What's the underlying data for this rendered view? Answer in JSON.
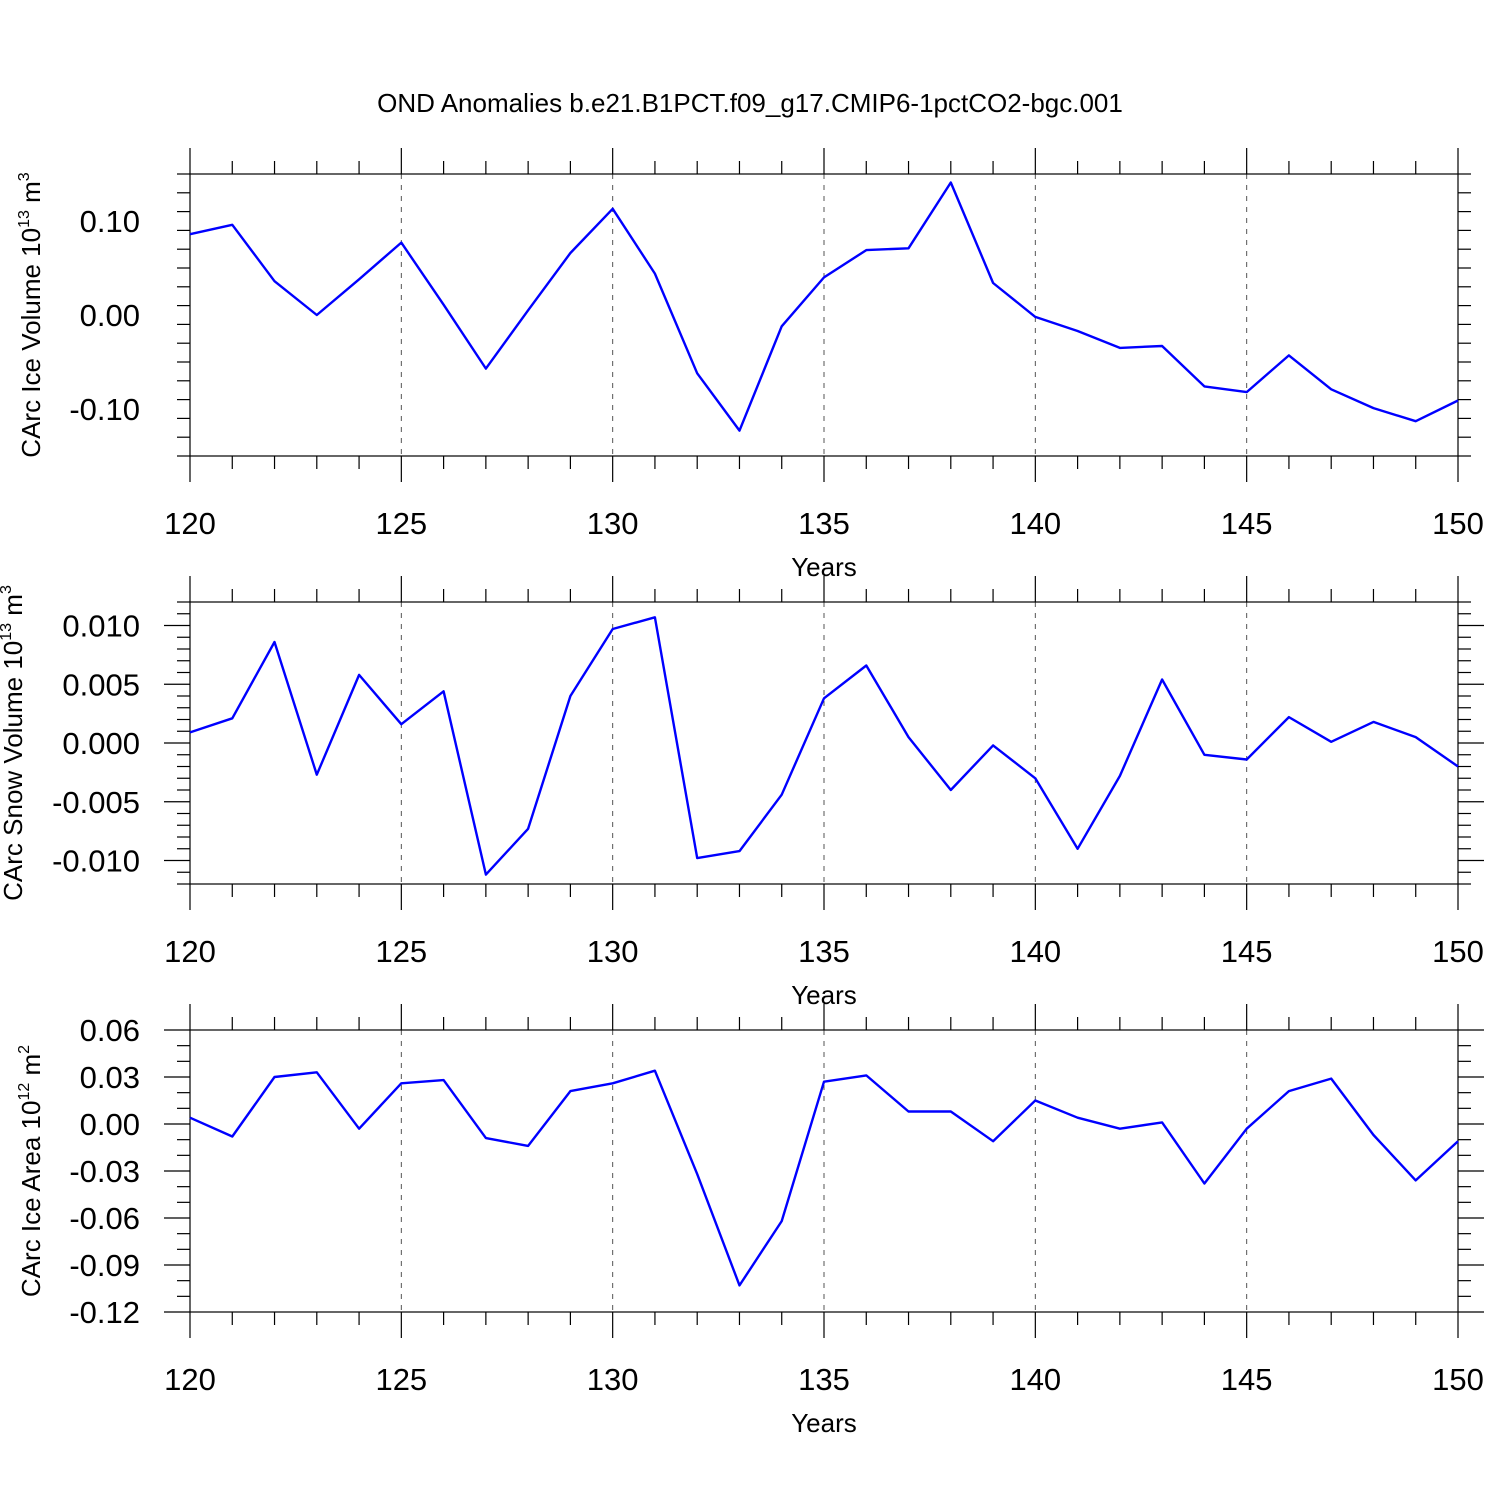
{
  "title": "OND Anomalies b.e21.B1PCT.f09_g17.CMIP6-1pctCO2-bgc.001",
  "colors": {
    "series": "#0000ff",
    "frame": "#000000",
    "grid": "#555555"
  },
  "chart_data": [
    {
      "type": "line",
      "xlabel": "Years",
      "ylabel": {
        "text": "CArc Ice Volume 10",
        "sup": "13",
        "unit": " m",
        "unit_sup": "3"
      },
      "xlim": [
        120,
        150
      ],
      "ylim": [
        -0.15,
        0.15
      ],
      "x_major_ticks": [
        120,
        125,
        130,
        135,
        140,
        145,
        150
      ],
      "x_tick_labels": [
        "120",
        "125",
        "130",
        "135",
        "140",
        "145",
        "150"
      ],
      "y_major_ticks": [
        -0.1,
        0.0,
        0.1
      ],
      "y_tick_labels": [
        "-0.10",
        "0.00",
        "0.10"
      ],
      "y_minor_step": 0.02,
      "grid": "vertical-dashed",
      "x": [
        120,
        121,
        122,
        123,
        124,
        125,
        126,
        127,
        128,
        129,
        130,
        131,
        132,
        133,
        134,
        135,
        136,
        137,
        138,
        139,
        140,
        141,
        142,
        143,
        144,
        145,
        146,
        147,
        148,
        149,
        150
      ],
      "values": [
        0.086,
        0.096,
        0.036,
        0.0,
        0.038,
        0.077,
        0.011,
        -0.057,
        0.005,
        0.066,
        0.113,
        0.044,
        -0.062,
        -0.123,
        -0.012,
        0.04,
        0.069,
        0.071,
        0.141,
        0.034,
        -0.002,
        -0.017,
        -0.035,
        -0.033,
        -0.076,
        -0.082,
        -0.043,
        -0.079,
        -0.099,
        -0.113,
        -0.091
      ]
    },
    {
      "type": "line",
      "xlabel": "Years",
      "ylabel": {
        "text": "CArc Snow Volume 10",
        "sup": "13",
        "unit": " m",
        "unit_sup": "3"
      },
      "xlim": [
        120,
        150
      ],
      "ylim": [
        -0.012,
        0.012
      ],
      "x_major_ticks": [
        120,
        125,
        130,
        135,
        140,
        145,
        150
      ],
      "x_tick_labels": [
        "120",
        "125",
        "130",
        "135",
        "140",
        "145",
        "150"
      ],
      "y_major_ticks": [
        -0.01,
        -0.005,
        0.0,
        0.005,
        0.01
      ],
      "y_tick_labels": [
        "-0.010",
        "-0.005",
        "0.000",
        "0.005",
        "0.010"
      ],
      "y_minor_step": 0.001,
      "grid": "vertical-dashed",
      "x": [
        120,
        121,
        122,
        123,
        124,
        125,
        126,
        127,
        128,
        129,
        130,
        131,
        132,
        133,
        134,
        135,
        136,
        137,
        138,
        139,
        140,
        141,
        142,
        143,
        144,
        145,
        146,
        147,
        148,
        149,
        150
      ],
      "values": [
        0.0009,
        0.0021,
        0.0086,
        -0.0027,
        0.0058,
        0.0016,
        0.0044,
        -0.0112,
        -0.0073,
        0.004,
        0.0097,
        0.0107,
        -0.0098,
        -0.0092,
        -0.0044,
        0.0038,
        0.0066,
        0.0005,
        -0.004,
        -0.0002,
        -0.003,
        -0.009,
        -0.0028,
        0.0054,
        -0.001,
        -0.0014,
        0.0022,
        0.0001,
        0.0018,
        0.0005,
        -0.002
      ]
    },
    {
      "type": "line",
      "xlabel": "Years",
      "ylabel": {
        "text": "CArc Ice Area 10",
        "sup": "12",
        "unit": " m",
        "unit_sup": "2"
      },
      "xlim": [
        120,
        150
      ],
      "ylim": [
        -0.12,
        0.06
      ],
      "x_major_ticks": [
        120,
        125,
        130,
        135,
        140,
        145,
        150
      ],
      "x_tick_labels": [
        "120",
        "125",
        "130",
        "135",
        "140",
        "145",
        "150"
      ],
      "y_major_ticks": [
        -0.12,
        -0.09,
        -0.06,
        -0.03,
        0.0,
        0.03,
        0.06
      ],
      "y_tick_labels": [
        "-0.12",
        "-0.09",
        "-0.06",
        "-0.03",
        "0.00",
        "0.03",
        "0.06"
      ],
      "y_minor_step": 0.01,
      "grid": "vertical-dashed",
      "x": [
        120,
        121,
        122,
        123,
        124,
        125,
        126,
        127,
        128,
        129,
        130,
        131,
        132,
        133,
        134,
        135,
        136,
        137,
        138,
        139,
        140,
        141,
        142,
        143,
        144,
        145,
        146,
        147,
        148,
        149,
        150
      ],
      "values": [
        0.004,
        -0.008,
        0.03,
        0.033,
        -0.003,
        0.026,
        0.028,
        -0.009,
        -0.014,
        0.021,
        0.026,
        0.034,
        -0.032,
        -0.103,
        -0.062,
        0.027,
        0.031,
        0.008,
        0.008,
        -0.011,
        0.015,
        0.004,
        -0.003,
        0.001,
        -0.038,
        -0.003,
        0.021,
        0.029,
        -0.007,
        -0.036,
        -0.011
      ]
    }
  ]
}
